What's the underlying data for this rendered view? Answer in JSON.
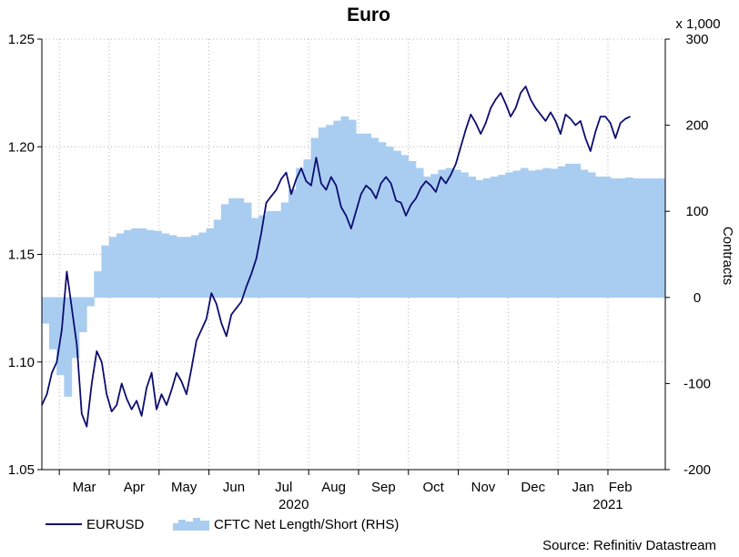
{
  "chart_data": {
    "type": "line",
    "title": "Euro",
    "source": "Source: Refinitiv Datastream",
    "left_axis": {
      "min": 1.05,
      "max": 1.25,
      "ticks": [
        1.05,
        1.1,
        1.15,
        1.2,
        1.25
      ],
      "tick_labels": [
        "1.05",
        "1.10",
        "1.15",
        "1.20",
        "1.25"
      ]
    },
    "right_axis": {
      "label": "Contracts",
      "multiplier_label": "x 1,000",
      "min": -200,
      "max": 300,
      "ticks": [
        -200,
        -100,
        0,
        100,
        200,
        300
      ],
      "tick_labels": [
        "-200",
        "-100",
        "0",
        "100",
        "200",
        "300"
      ]
    },
    "x_axis": {
      "start": 0,
      "end": 12.5,
      "month_labels": [
        "Mar",
        "Apr",
        "May",
        "Jun",
        "Jul",
        "Aug",
        "Sep",
        "Oct",
        "Nov",
        "Dec",
        "Jan",
        "Feb"
      ],
      "month_label_positions": [
        0.85,
        1.85,
        2.85,
        3.85,
        4.85,
        5.85,
        6.85,
        7.85,
        8.85,
        9.85,
        10.85,
        11.6
      ],
      "grid_positions": [
        0.35,
        1.35,
        2.35,
        3.35,
        4.35,
        5.35,
        6.35,
        7.35,
        8.35,
        9.35,
        10.35,
        11.35
      ],
      "year_labels": [
        {
          "label": "2020",
          "position": 5.05
        },
        {
          "label": "2021",
          "position": 11.35
        }
      ]
    },
    "series": [
      {
        "name": "EURUSD",
        "axis": "left",
        "color": "#0d0d70",
        "x": [
          0.0,
          0.1,
          0.2,
          0.3,
          0.4,
          0.5,
          0.6,
          0.7,
          0.8,
          0.9,
          1.0,
          1.1,
          1.2,
          1.3,
          1.4,
          1.5,
          1.6,
          1.7,
          1.8,
          1.9,
          2.0,
          2.1,
          2.2,
          2.3,
          2.4,
          2.5,
          2.6,
          2.7,
          2.8,
          2.9,
          3.0,
          3.1,
          3.2,
          3.3,
          3.4,
          3.5,
          3.6,
          3.7,
          3.8,
          3.9,
          4.0,
          4.1,
          4.2,
          4.3,
          4.4,
          4.5,
          4.6,
          4.7,
          4.8,
          4.9,
          5.0,
          5.1,
          5.2,
          5.3,
          5.4,
          5.5,
          5.6,
          5.7,
          5.8,
          5.9,
          6.0,
          6.1,
          6.2,
          6.3,
          6.4,
          6.5,
          6.6,
          6.7,
          6.8,
          6.9,
          7.0,
          7.1,
          7.2,
          7.3,
          7.4,
          7.5,
          7.6,
          7.7,
          7.8,
          7.9,
          8.0,
          8.1,
          8.2,
          8.3,
          8.4,
          8.5,
          8.6,
          8.7,
          8.8,
          8.9,
          9.0,
          9.1,
          9.2,
          9.3,
          9.4,
          9.5,
          9.6,
          9.7,
          9.8,
          9.9,
          10.0,
          10.1,
          10.2,
          10.3,
          10.4,
          10.5,
          10.6,
          10.7,
          10.8,
          10.9,
          11.0,
          11.1,
          11.2,
          11.3,
          11.4,
          11.5,
          11.6,
          11.7,
          11.8
        ],
        "values": [
          1.08,
          1.085,
          1.095,
          1.1,
          1.115,
          1.142,
          1.125,
          1.108,
          1.076,
          1.07,
          1.09,
          1.105,
          1.1,
          1.085,
          1.077,
          1.08,
          1.09,
          1.083,
          1.078,
          1.082,
          1.075,
          1.088,
          1.095,
          1.078,
          1.085,
          1.08,
          1.087,
          1.095,
          1.091,
          1.085,
          1.097,
          1.11,
          1.115,
          1.12,
          1.132,
          1.127,
          1.118,
          1.112,
          1.122,
          1.125,
          1.128,
          1.135,
          1.141,
          1.148,
          1.16,
          1.174,
          1.177,
          1.18,
          1.185,
          1.188,
          1.178,
          1.185,
          1.19,
          1.184,
          1.182,
          1.195,
          1.183,
          1.18,
          1.186,
          1.182,
          1.172,
          1.168,
          1.162,
          1.17,
          1.178,
          1.182,
          1.18,
          1.176,
          1.183,
          1.186,
          1.183,
          1.175,
          1.174,
          1.168,
          1.173,
          1.176,
          1.181,
          1.184,
          1.182,
          1.179,
          1.186,
          1.183,
          1.187,
          1.192,
          1.2,
          1.208,
          1.215,
          1.211,
          1.206,
          1.211,
          1.218,
          1.222,
          1.225,
          1.22,
          1.214,
          1.218,
          1.225,
          1.228,
          1.222,
          1.218,
          1.215,
          1.212,
          1.216,
          1.212,
          1.206,
          1.215,
          1.213,
          1.21,
          1.212,
          1.204,
          1.198,
          1.207,
          1.214,
          1.214,
          1.211,
          1.204,
          1.211,
          1.213,
          1.214
        ],
        "step": false
      },
      {
        "name": "CFTC Net Length/Short (RHS)",
        "axis": "right",
        "color": "#a9cdf0",
        "x": [
          0.0,
          0.15,
          0.3,
          0.45,
          0.6,
          0.75,
          0.9,
          1.05,
          1.2,
          1.35,
          1.5,
          1.65,
          1.8,
          1.95,
          2.1,
          2.25,
          2.4,
          2.55,
          2.7,
          2.85,
          3.0,
          3.15,
          3.3,
          3.45,
          3.6,
          3.75,
          3.9,
          4.05,
          4.2,
          4.35,
          4.5,
          4.65,
          4.8,
          4.95,
          5.1,
          5.25,
          5.4,
          5.55,
          5.7,
          5.85,
          6.0,
          6.15,
          6.3,
          6.45,
          6.6,
          6.75,
          6.9,
          7.05,
          7.2,
          7.35,
          7.5,
          7.65,
          7.8,
          7.95,
          8.1,
          8.25,
          8.4,
          8.55,
          8.7,
          8.85,
          9.0,
          9.15,
          9.3,
          9.45,
          9.6,
          9.75,
          9.9,
          10.05,
          10.2,
          10.35,
          10.5,
          10.65,
          10.8,
          10.95,
          11.1,
          11.25,
          11.4,
          11.55,
          11.7,
          11.85,
          12.0
        ],
        "values": [
          -30,
          -60,
          -90,
          -115,
          -70,
          -40,
          -10,
          30,
          60,
          70,
          74,
          78,
          80,
          80,
          78,
          77,
          74,
          72,
          70,
          70,
          72,
          75,
          80,
          90,
          108,
          115,
          115,
          110,
          92,
          95,
          100,
          100,
          110,
          125,
          150,
          160,
          185,
          197,
          200,
          205,
          210,
          206,
          190,
          190,
          185,
          180,
          175,
          170,
          165,
          158,
          150,
          140,
          143,
          148,
          150,
          148,
          145,
          140,
          136,
          138,
          140,
          142,
          145,
          147,
          150,
          147,
          148,
          150,
          149,
          152,
          155,
          155,
          148,
          145,
          140,
          140,
          138,
          138,
          139,
          138,
          138
        ],
        "step": true
      }
    ],
    "legend": [
      {
        "label": "EURUSD",
        "type": "line"
      },
      {
        "label": "CFTC Net Length/Short (RHS)",
        "type": "area"
      }
    ]
  }
}
